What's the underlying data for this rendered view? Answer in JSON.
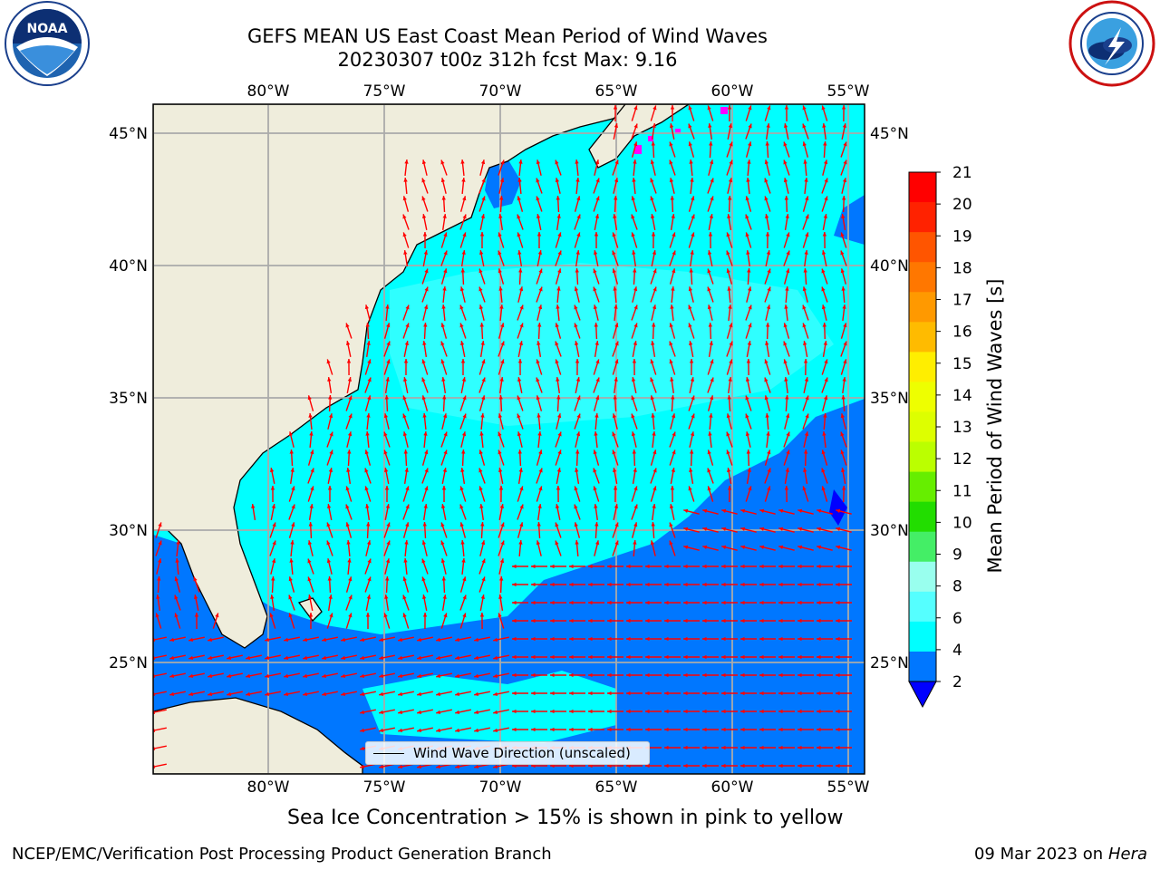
{
  "header": {
    "title_line1": "GEFS MEAN US East Coast Mean Period of Wind Waves",
    "title_line2": "20230307 t00z 312h fcst   Max: 9.16"
  },
  "logos": {
    "noaa": {
      "text": "NOAA",
      "icon": "noaa-seal-icon"
    },
    "nws": {
      "icon": "nws-seal-icon"
    }
  },
  "map": {
    "lon_ticks": [
      "80°W",
      "75°W",
      "70°W",
      "65°W",
      "60°W",
      "55°W"
    ],
    "lat_ticks": [
      "45°N",
      "40°N",
      "35°N",
      "30°N",
      "25°N"
    ],
    "colors": {
      "land": "#efeddc",
      "grid": "#aaaaaa",
      "arrow": "#ff0000",
      "coast": "#000000",
      "ice": "#ff00ff"
    }
  },
  "legend": {
    "label": "Wind Wave Direction (unscaled)"
  },
  "colorbar": {
    "label": "Mean Period of Wind Waves [s]",
    "ticks": [
      "21",
      "20",
      "19",
      "18",
      "17",
      "16",
      "15",
      "14",
      "13",
      "12",
      "11",
      "10",
      "9",
      "8",
      "6",
      "4",
      "2"
    ],
    "colors": [
      "#ff0000",
      "#ff2200",
      "#ff5500",
      "#ff7700",
      "#ff9900",
      "#ffbb00",
      "#ffee00",
      "#eeff00",
      "#ddff00",
      "#bbff00",
      "#66ee00",
      "#22dd00",
      "#44ee66",
      "#99ffee",
      "#55ffff",
      "#00ffff",
      "#0077ff"
    ],
    "under_color": "#0000ff"
  },
  "footer": {
    "subtitle": "Sea Ice Concentration > 15% is shown in pink to yellow",
    "left": "NCEP/EMC/Verification Post Processing Product Generation Branch",
    "right_date": "09 Mar 2023 on",
    "right_system": "Hera"
  }
}
